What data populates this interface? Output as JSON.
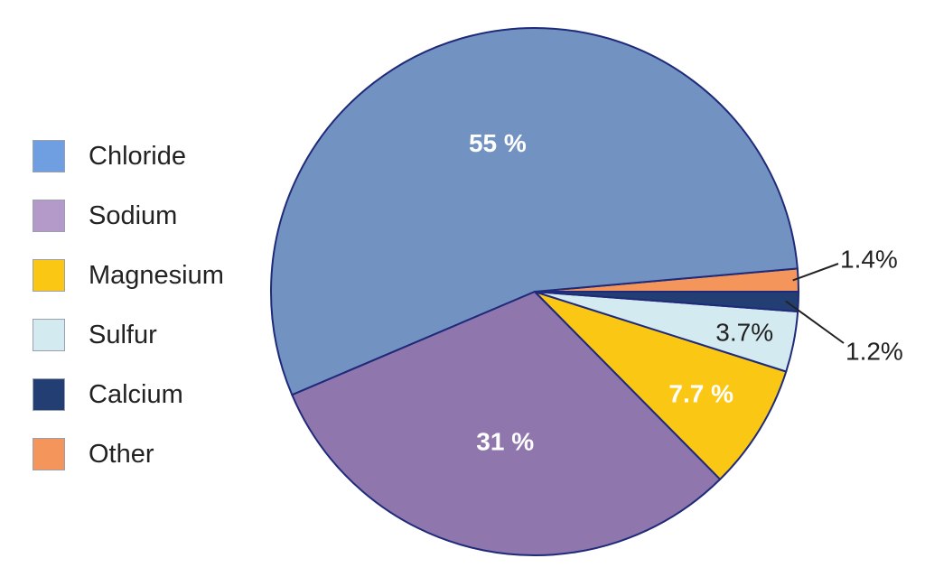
{
  "chart_data": {
    "type": "pie",
    "categories": [
      "Chloride",
      "Sodium",
      "Magnesium",
      "Sulfur",
      "Calcium",
      "Other"
    ],
    "values": [
      55,
      31,
      7.7,
      3.7,
      1.2,
      1.4
    ],
    "data_labels": [
      "55 %",
      "31 %",
      "7.7 %",
      "3.7%",
      "1.2%",
      "1.4%"
    ],
    "colors": [
      "#7293c2",
      "#8f76ac",
      "#fbc715",
      "#d4eaf1",
      "#223e72",
      "#f4955b"
    ],
    "legend_colors": [
      "#6f9fe0",
      "#b39ac9",
      "#fbc715",
      "#d4eaf1",
      "#223e72",
      "#f4955b"
    ],
    "legend_position": "left",
    "start": "3 o'clock",
    "direction": "counterclockwise"
  }
}
